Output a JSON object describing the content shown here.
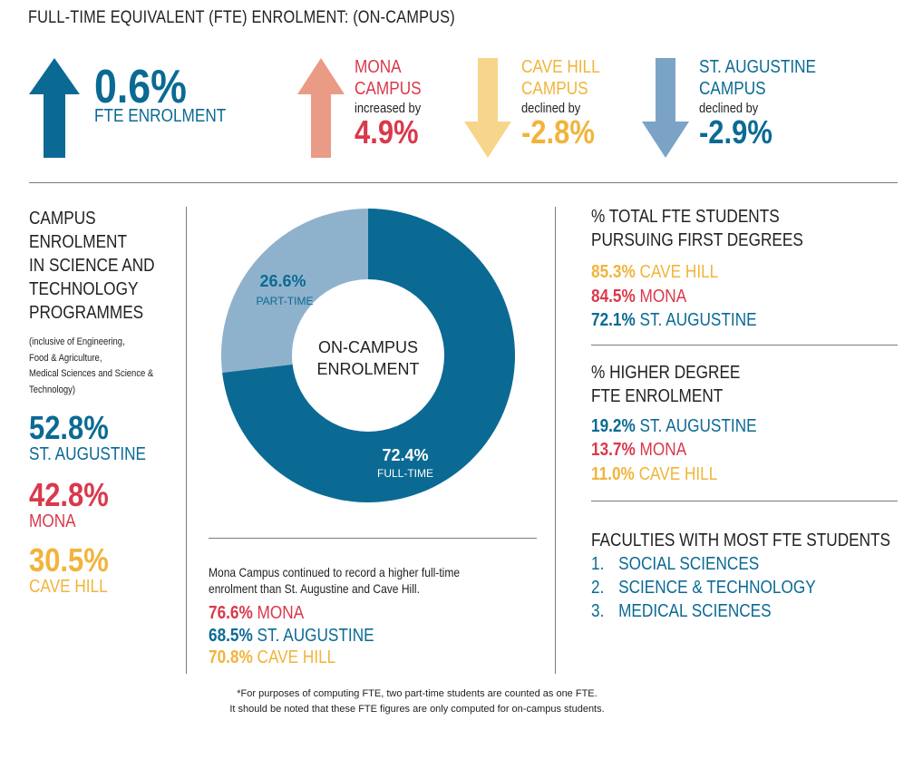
{
  "title": "FULL-TIME EQUIVALENT (FTE) ENROLMENT: (ON-CAMPUS)",
  "colors": {
    "blue": "#0b6a94",
    "light_blue": "#7ba3c6",
    "red": "#d9394b",
    "salmon": "#e99b86",
    "yellow": "#f1b43b",
    "light_yellow": "#f7d58a",
    "gray_blue": "#8fb2cc"
  },
  "headline": {
    "overall": {
      "value": "0.6%",
      "label": "FTE ENROLMENT",
      "direction": "up"
    },
    "campuses": [
      {
        "name_line1": "MONA",
        "name_line2": "CAMPUS",
        "change_text": "increased by",
        "value": "4.9%",
        "direction": "up"
      },
      {
        "name_line1": "CAVE HILL",
        "name_line2": "CAMPUS",
        "change_text": "declined by",
        "value": "-2.8%",
        "direction": "down"
      },
      {
        "name_line1": "ST. AUGUSTINE",
        "name_line2": "CAMPUS",
        "change_text": "declined by",
        "value": "-2.9%",
        "direction": "down"
      }
    ]
  },
  "science_tech": {
    "heading": [
      "CAMPUS",
      "ENROLMENT",
      "IN SCIENCE AND",
      "TECHNOLOGY",
      "PROGRAMMES"
    ],
    "note": [
      "(inclusive of Engineering,",
      "Food & Agriculture,",
      "Medical Sciences and Science &",
      "Technology)"
    ],
    "items": [
      {
        "value": "52.8%",
        "campus": "ST. AUGUSTINE"
      },
      {
        "value": "42.8%",
        "campus": "MONA"
      },
      {
        "value": "30.5%",
        "campus": "CAVE HILL"
      }
    ]
  },
  "chart_data": {
    "type": "pie",
    "title": "ON-CAMPUS ENROLMENT",
    "categories": [
      "FULL-TIME",
      "PART-TIME"
    ],
    "values": [
      72.4,
      26.6
    ],
    "value_labels": [
      "72.4%",
      "26.6%"
    ]
  },
  "donut": {
    "center_line1": "ON-CAMPUS",
    "center_line2": "ENROLMENT"
  },
  "fulltime": {
    "text_line1": "Mona Campus continued to record a higher full-time",
    "text_line2": "enrolment than St. Augustine and Cave Hill.",
    "items": [
      {
        "value": "76.6%",
        "campus": "MONA"
      },
      {
        "value": "68.5%",
        "campus": "ST. AUGUSTINE"
      },
      {
        "value": "70.8%",
        "campus": "CAVE HILL"
      }
    ]
  },
  "first_degrees": {
    "heading_line1": "% TOTAL FTE STUDENTS",
    "heading_line2": "PURSUING FIRST DEGREES",
    "items": [
      {
        "value": "85.3%",
        "campus": "CAVE HILL"
      },
      {
        "value": "84.5%",
        "campus": "MONA"
      },
      {
        "value": "72.1%",
        "campus": "ST. AUGUSTINE"
      }
    ]
  },
  "higher_degree": {
    "heading_line1": "% HIGHER DEGREE",
    "heading_line2": "FTE ENROLMENT",
    "items": [
      {
        "value": "19.2%",
        "campus": "ST. AUGUSTINE"
      },
      {
        "value": "13.7%",
        "campus": "MONA"
      },
      {
        "value": "11.0%",
        "campus": "CAVE HILL"
      }
    ]
  },
  "faculties": {
    "heading": "FACULTIES WITH MOST FTE STUDENTS",
    "items": [
      {
        "num": "1.",
        "name": "SOCIAL SCIENCES"
      },
      {
        "num": "2.",
        "name": "SCIENCE & TECHNOLOGY"
      },
      {
        "num": "3.",
        "name": "MEDICAL SCIENCES"
      }
    ]
  },
  "footnote": {
    "line1": "*For purposes of computing FTE, two part-time students are counted as one FTE.",
    "line2": "It should be noted that these FTE figures are only computed for on-campus students."
  }
}
